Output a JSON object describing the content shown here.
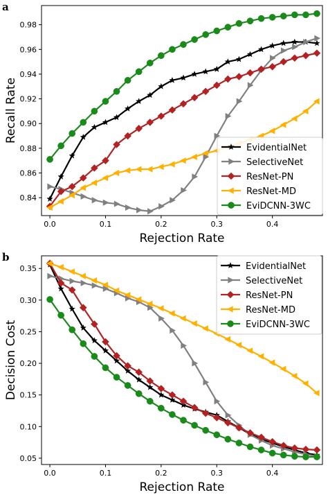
{
  "chart_data": [
    {
      "type": "line",
      "panel_label": "a",
      "xlabel": "Rejection Rate",
      "ylabel": "Recall Rate",
      "xlim": [
        -0.015,
        0.49
      ],
      "ylim": [
        0.8255,
        0.9955
      ],
      "xticks": [
        "0.0",
        "0.1",
        "0.2",
        "0.3",
        "0.4"
      ],
      "xtick_values": [
        0.0,
        0.1,
        0.2,
        0.3,
        0.4
      ],
      "yticks": [
        "0.84",
        "0.86",
        "0.88",
        "0.90",
        "0.92",
        "0.94",
        "0.96",
        "0.98"
      ],
      "ytick_values": [
        0.84,
        0.86,
        0.88,
        0.9,
        0.92,
        0.94,
        0.96,
        0.98
      ],
      "legend_position": "lower right",
      "x": [
        0.0,
        0.02,
        0.04,
        0.06,
        0.08,
        0.1,
        0.12,
        0.14,
        0.16,
        0.18,
        0.2,
        0.22,
        0.24,
        0.26,
        0.28,
        0.3,
        0.32,
        0.34,
        0.36,
        0.38,
        0.4,
        0.42,
        0.44,
        0.46,
        0.48
      ],
      "series": [
        {
          "name": "EvidentialNet",
          "color": "#000000",
          "marker": "star",
          "values": [
            0.839,
            0.857,
            0.874,
            0.889,
            0.897,
            0.901,
            0.905,
            0.912,
            0.918,
            0.923,
            0.93,
            0.935,
            0.937,
            0.94,
            0.942,
            0.944,
            0.95,
            0.952,
            0.956,
            0.96,
            0.963,
            0.965,
            0.966,
            0.966,
            0.965
          ]
        },
        {
          "name": "SelectiveNet",
          "color": "#808080",
          "marker": "triangle-right",
          "values": [
            0.849,
            0.847,
            0.844,
            0.841,
            0.838,
            0.836,
            0.835,
            0.832,
            0.83,
            0.829,
            0.833,
            0.838,
            0.846,
            0.857,
            0.873,
            0.89,
            0.906,
            0.918,
            0.931,
            0.943,
            0.953,
            0.959,
            0.962,
            0.966,
            0.969
          ]
        },
        {
          "name": "ResNet-PN",
          "color": "#b22222",
          "marker": "diamond",
          "values": [
            0.833,
            0.845,
            0.849,
            0.856,
            0.864,
            0.87,
            0.883,
            0.89,
            0.896,
            0.901,
            0.906,
            0.911,
            0.916,
            0.921,
            0.926,
            0.931,
            0.936,
            0.938,
            0.941,
            0.944,
            0.946,
            0.95,
            0.953,
            0.955,
            0.957
          ]
        },
        {
          "name": "ResNet-MD",
          "color": "#ffb000",
          "marker": "triangle-left",
          "values": [
            0.832,
            0.837,
            0.842,
            0.848,
            0.852,
            0.856,
            0.86,
            0.862,
            0.863,
            0.863,
            0.865,
            0.867,
            0.87,
            0.873,
            0.876,
            0.878,
            0.881,
            0.884,
            0.887,
            0.89,
            0.894,
            0.899,
            0.904,
            0.91,
            0.918
          ]
        },
        {
          "name": "EviDCNN-3WC",
          "color": "#1a8a1a",
          "marker": "circle",
          "values": [
            0.871,
            0.882,
            0.892,
            0.901,
            0.91,
            0.918,
            0.926,
            0.935,
            0.942,
            0.949,
            0.955,
            0.96,
            0.964,
            0.968,
            0.972,
            0.975,
            0.978,
            0.981,
            0.983,
            0.985,
            0.986,
            0.987,
            0.988,
            0.988,
            0.989
          ]
        }
      ]
    },
    {
      "type": "line",
      "panel_label": "b",
      "xlabel": "Rejection Rate",
      "ylabel": "Decision Cost",
      "xlim": [
        -0.015,
        0.49
      ],
      "ylim": [
        0.04,
        0.37
      ],
      "xticks": [
        "0.0",
        "0.1",
        "0.2",
        "0.3",
        "0.4"
      ],
      "xtick_values": [
        0.0,
        0.1,
        0.2,
        0.3,
        0.4
      ],
      "yticks": [
        "0.05",
        "0.10",
        "0.15",
        "0.20",
        "0.25",
        "0.30",
        "0.35"
      ],
      "ytick_values": [
        0.05,
        0.1,
        0.15,
        0.2,
        0.25,
        0.3,
        0.35
      ],
      "legend_position": "upper right",
      "x": [
        0.0,
        0.02,
        0.04,
        0.06,
        0.08,
        0.1,
        0.12,
        0.14,
        0.16,
        0.18,
        0.2,
        0.22,
        0.24,
        0.26,
        0.28,
        0.3,
        0.32,
        0.34,
        0.36,
        0.38,
        0.4,
        0.42,
        0.44,
        0.46,
        0.48
      ],
      "series": [
        {
          "name": "EvidentialNet",
          "color": "#000000",
          "marker": "star",
          "values": [
            0.356,
            0.318,
            0.286,
            0.256,
            0.236,
            0.22,
            0.204,
            0.188,
            0.174,
            0.162,
            0.15,
            0.142,
            0.134,
            0.128,
            0.123,
            0.118,
            0.108,
            0.098,
            0.088,
            0.08,
            0.074,
            0.068,
            0.063,
            0.058,
            0.055
          ]
        },
        {
          "name": "SelectiveNet",
          "color": "#808080",
          "marker": "triangle-right",
          "values": [
            0.338,
            0.334,
            0.33,
            0.327,
            0.323,
            0.318,
            0.311,
            0.303,
            0.297,
            0.288,
            0.271,
            0.252,
            0.228,
            0.2,
            0.17,
            0.14,
            0.118,
            0.102,
            0.087,
            0.078,
            0.07,
            0.065,
            0.06,
            0.056,
            0.053
          ]
        },
        {
          "name": "ResNet-PN",
          "color": "#b22222",
          "marker": "diamond",
          "values": [
            0.358,
            0.327,
            0.316,
            0.288,
            0.262,
            0.234,
            0.212,
            0.196,
            0.186,
            0.172,
            0.16,
            0.15,
            0.14,
            0.13,
            0.121,
            0.114,
            0.106,
            0.098,
            0.09,
            0.083,
            0.076,
            0.07,
            0.066,
            0.064,
            0.063
          ]
        },
        {
          "name": "ResNet-MD",
          "color": "#ffb000",
          "marker": "triangle-left",
          "values": [
            0.358,
            0.352,
            0.345,
            0.338,
            0.331,
            0.324,
            0.315,
            0.308,
            0.301,
            0.294,
            0.287,
            0.279,
            0.271,
            0.263,
            0.255,
            0.247,
            0.238,
            0.229,
            0.22,
            0.211,
            0.201,
            0.191,
            0.18,
            0.168,
            0.153
          ]
        },
        {
          "name": "EviDCNN-3WC",
          "color": "#1a8a1a",
          "marker": "circle",
          "values": [
            0.301,
            0.276,
            0.253,
            0.231,
            0.211,
            0.193,
            0.178,
            0.165,
            0.152,
            0.14,
            0.129,
            0.119,
            0.11,
            0.102,
            0.094,
            0.087,
            0.08,
            0.074,
            0.068,
            0.063,
            0.058,
            0.055,
            0.053,
            0.052,
            0.052
          ]
        }
      ]
    }
  ]
}
